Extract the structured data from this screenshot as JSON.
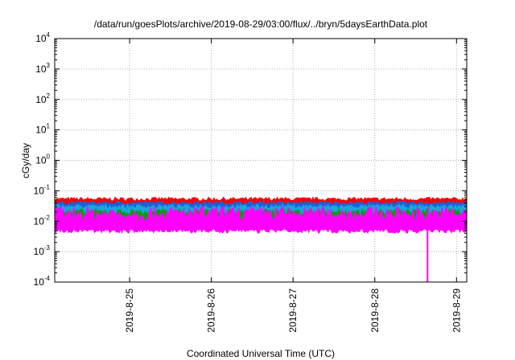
{
  "chart_data": {
    "type": "area",
    "title": "/data/run/goesPlots/archive/2019-08-29/03:00/flux/../bryn/5daysEarthData.plot",
    "xlabel": "Coordinated Universal Time (UTC)",
    "ylabel": "cGy/day",
    "x_ticks": [
      "2019-8-25",
      "2019-8-26",
      "2019-8-27",
      "2019-8-28",
      "2019-8-29"
    ],
    "x_range": [
      "2019-08-24 02:00",
      "2019-08-29 03:00"
    ],
    "y_scale": "log",
    "y_ticks": [
      {
        "base": "10",
        "exp": "-4"
      },
      {
        "base": "10",
        "exp": "-3"
      },
      {
        "base": "10",
        "exp": "-2"
      },
      {
        "base": "10",
        "exp": "-1"
      },
      {
        "base": "10",
        "exp": "0"
      },
      {
        "base": "10",
        "exp": "1"
      },
      {
        "base": "10",
        "exp": "2"
      },
      {
        "base": "10",
        "exp": "3"
      },
      {
        "base": "10",
        "exp": "4"
      }
    ],
    "ylim": [
      0.0001,
      10000
    ],
    "grid": true,
    "legend": "none",
    "series": [
      {
        "color": "#ff0000",
        "band": [
          0.025,
          0.06
        ],
        "typical": 0.04
      },
      {
        "color": "#1e5fd8",
        "band": [
          0.02,
          0.045
        ],
        "typical": 0.03
      },
      {
        "color": "#19a6d8",
        "band": [
          0.012,
          0.035
        ],
        "typical": 0.022
      },
      {
        "color": "#00a000",
        "band": [
          0.006,
          0.025
        ],
        "typical": 0.012
      },
      {
        "color": "#ff00ff",
        "band": [
          0.004,
          0.03
        ],
        "typical": 0.006,
        "dip": {
          "x": "2019-08-28 15:30",
          "y": 0.0001
        }
      }
    ]
  }
}
